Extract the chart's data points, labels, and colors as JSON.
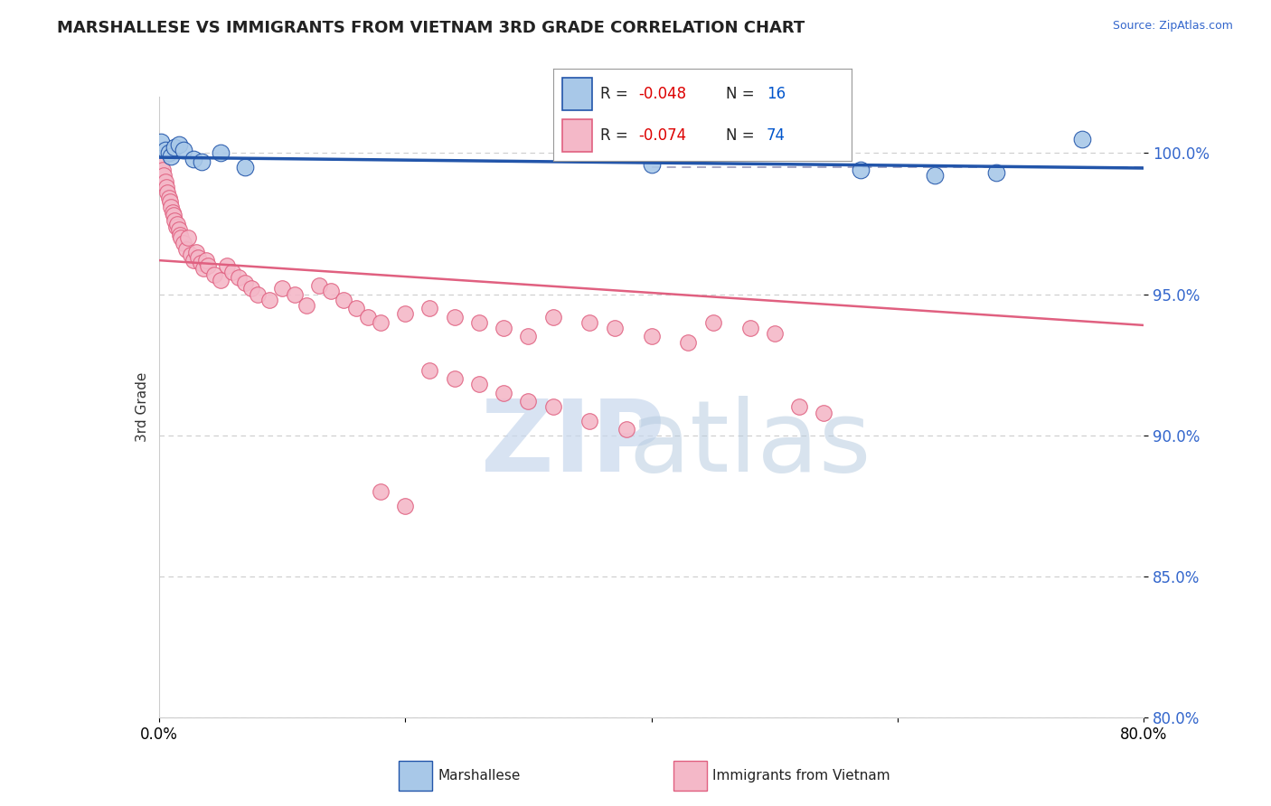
{
  "title": "MARSHALLESE VS IMMIGRANTS FROM VIETNAM 3RD GRADE CORRELATION CHART",
  "source_text": "Source: ZipAtlas.com",
  "ylabel": "3rd Grade",
  "xlim": [
    0.0,
    80.0
  ],
  "ylim": [
    80.0,
    102.0
  ],
  "ytick_vals": [
    80.0,
    85.0,
    90.0,
    95.0,
    100.0
  ],
  "blue_color": "#a8c8e8",
  "pink_color": "#f4b8c8",
  "blue_line_color": "#2255aa",
  "pink_line_color": "#e06080",
  "blue_scatter": [
    [
      0.2,
      100.4
    ],
    [
      0.5,
      100.1
    ],
    [
      0.8,
      100.0
    ],
    [
      1.0,
      99.9
    ],
    [
      1.3,
      100.2
    ],
    [
      1.6,
      100.3
    ],
    [
      2.0,
      100.1
    ],
    [
      2.8,
      99.8
    ],
    [
      3.5,
      99.7
    ],
    [
      5.0,
      100.0
    ],
    [
      7.0,
      99.5
    ],
    [
      40.0,
      99.6
    ],
    [
      57.0,
      99.4
    ],
    [
      63.0,
      99.2
    ],
    [
      68.0,
      99.3
    ],
    [
      75.0,
      100.5
    ]
  ],
  "pink_scatter": [
    [
      0.2,
      99.6
    ],
    [
      0.3,
      99.4
    ],
    [
      0.4,
      99.2
    ],
    [
      0.5,
      99.0
    ],
    [
      0.6,
      98.8
    ],
    [
      0.7,
      98.6
    ],
    [
      0.8,
      98.4
    ],
    [
      0.9,
      98.3
    ],
    [
      1.0,
      98.1
    ],
    [
      1.1,
      97.9
    ],
    [
      1.2,
      97.8
    ],
    [
      1.3,
      97.6
    ],
    [
      1.4,
      97.4
    ],
    [
      1.5,
      97.5
    ],
    [
      1.6,
      97.3
    ],
    [
      1.7,
      97.1
    ],
    [
      1.8,
      97.0
    ],
    [
      2.0,
      96.8
    ],
    [
      2.2,
      96.6
    ],
    [
      2.4,
      97.0
    ],
    [
      2.6,
      96.4
    ],
    [
      2.8,
      96.2
    ],
    [
      3.0,
      96.5
    ],
    [
      3.2,
      96.3
    ],
    [
      3.4,
      96.1
    ],
    [
      3.6,
      95.9
    ],
    [
      3.8,
      96.2
    ],
    [
      4.0,
      96.0
    ],
    [
      4.5,
      95.7
    ],
    [
      5.0,
      95.5
    ],
    [
      5.5,
      96.0
    ],
    [
      6.0,
      95.8
    ],
    [
      6.5,
      95.6
    ],
    [
      7.0,
      95.4
    ],
    [
      7.5,
      95.2
    ],
    [
      8.0,
      95.0
    ],
    [
      9.0,
      94.8
    ],
    [
      10.0,
      95.2
    ],
    [
      11.0,
      95.0
    ],
    [
      12.0,
      94.6
    ],
    [
      13.0,
      95.3
    ],
    [
      14.0,
      95.1
    ],
    [
      15.0,
      94.8
    ],
    [
      16.0,
      94.5
    ],
    [
      17.0,
      94.2
    ],
    [
      18.0,
      94.0
    ],
    [
      20.0,
      94.3
    ],
    [
      22.0,
      94.5
    ],
    [
      24.0,
      94.2
    ],
    [
      26.0,
      94.0
    ],
    [
      28.0,
      93.8
    ],
    [
      30.0,
      93.5
    ],
    [
      32.0,
      94.2
    ],
    [
      35.0,
      94.0
    ],
    [
      37.0,
      93.8
    ],
    [
      40.0,
      93.5
    ],
    [
      43.0,
      93.3
    ],
    [
      45.0,
      94.0
    ],
    [
      48.0,
      93.8
    ],
    [
      50.0,
      93.6
    ],
    [
      52.0,
      91.0
    ],
    [
      54.0,
      90.8
    ],
    [
      18.0,
      88.0
    ],
    [
      20.0,
      87.5
    ],
    [
      22.0,
      92.3
    ],
    [
      24.0,
      92.0
    ],
    [
      26.0,
      91.8
    ],
    [
      28.0,
      91.5
    ],
    [
      30.0,
      91.2
    ],
    [
      32.0,
      91.0
    ],
    [
      35.0,
      90.5
    ],
    [
      38.0,
      90.2
    ]
  ],
  "blue_trendline_x": [
    0.0,
    80.0
  ],
  "blue_trendline_y": [
    99.85,
    99.47
  ],
  "pink_trendline_x": [
    0.0,
    80.0
  ],
  "pink_trendline_y": [
    96.2,
    93.9
  ],
  "dashed_line_y": 99.5,
  "legend_R_color": "#dd0000",
  "legend_N_color": "#0055cc",
  "legend_box_color": "#333333"
}
